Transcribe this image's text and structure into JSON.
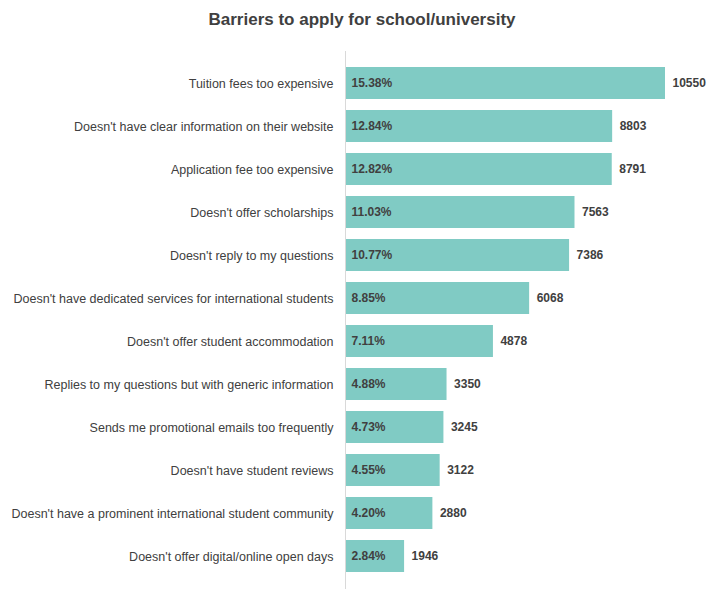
{
  "chart_data": {
    "type": "bar",
    "title": "Barriers to apply for school/university",
    "orientation": "horizontal",
    "data_labels": true,
    "tick_labels": "y",
    "grid": false,
    "color": "#80cbc4",
    "categories": [
      "Tuition fees too expensive",
      "Doesn't have clear information on their website",
      "Application fee too expensive",
      "Doesn't offer scholarships",
      "Doesn't reply to my questions",
      "Doesn't have dedicated services for international students",
      "Doesn't offer student accommodation",
      "Replies to my questions but with generic information",
      "Sends me promotional emails too frequently",
      "Doesn't have student reviews",
      "Doesn't have a prominent international student community",
      "Doesn't offer digital/online open days"
    ],
    "values": [
      15.38,
      12.84,
      12.82,
      11.03,
      10.77,
      8.85,
      7.11,
      4.88,
      4.73,
      4.55,
      4.2,
      2.84
    ],
    "value_labels": [
      "15.38%",
      "12.84%",
      "12.82%",
      "11.03%",
      "10.77%",
      "8.85%",
      "7.11%",
      "4.88%",
      "4.73%",
      "4.55%",
      "4.20%",
      "2.84%"
    ],
    "counts": [
      10550,
      8803,
      8791,
      7563,
      7386,
      6068,
      4878,
      3350,
      3245,
      3122,
      2880,
      1946
    ]
  }
}
